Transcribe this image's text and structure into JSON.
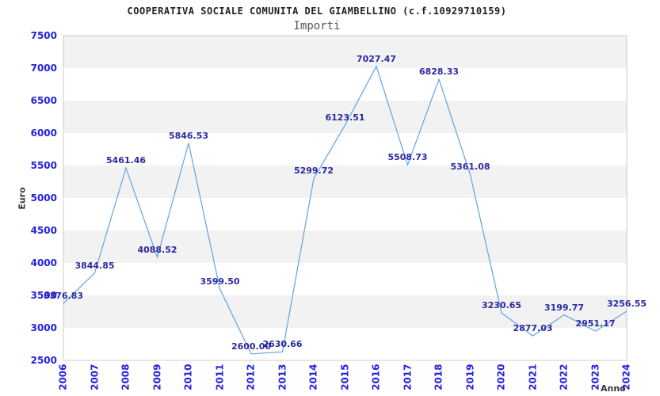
{
  "chart_data": {
    "type": "line",
    "title": "COOPERATIVA SOCIALE COMUNITA DEL GIAMBELLINO (c.f.10929710159)",
    "subtitle": "Importi",
    "xlabel": "Anno",
    "ylabel": "Euro",
    "x": [
      "2006",
      "2007",
      "2008",
      "2009",
      "2010",
      "2011",
      "2012",
      "2013",
      "2014",
      "2015",
      "2016",
      "2017",
      "2018",
      "2019",
      "2020",
      "2021",
      "2022",
      "2023",
      "2024"
    ],
    "series": [
      {
        "name": "Importi",
        "values": [
          3376.83,
          3844.85,
          5461.46,
          4088.52,
          5846.53,
          3599.5,
          2600.0,
          2630.66,
          5299.72,
          6123.51,
          7027.47,
          5508.73,
          6828.33,
          5361.08,
          3230.65,
          2877.03,
          3199.77,
          2951.17,
          3256.55
        ],
        "point_labels": [
          "3376.83",
          "3844.85",
          "5461.46",
          "4088.52",
          "5846.53",
          "3599.50",
          "2600.00",
          "2630.66",
          "5299.72",
          "6123.51",
          "7027.47",
          "5508.73",
          "6828.33",
          "5361.08",
          "3230.65",
          "2877.03",
          "3199.77",
          "2951.17",
          "3256.55"
        ]
      }
    ],
    "ylim": [
      2500,
      7500
    ],
    "yticks": [
      7500,
      7000,
      6500,
      6000,
      5500,
      5000,
      4500,
      4000,
      3500,
      3000,
      2500
    ],
    "grid": "horizontal-alternating-bands",
    "legend": "none"
  },
  "colors": {
    "line": "#64a2e0",
    "tick_label": "#2222e0",
    "point_label": "#2a2aa0",
    "band": "#f2f2f2",
    "plot_border": "#cccccc",
    "title_text": "#222222",
    "subtitle_text": "#555555",
    "axis_title": "#333333"
  }
}
